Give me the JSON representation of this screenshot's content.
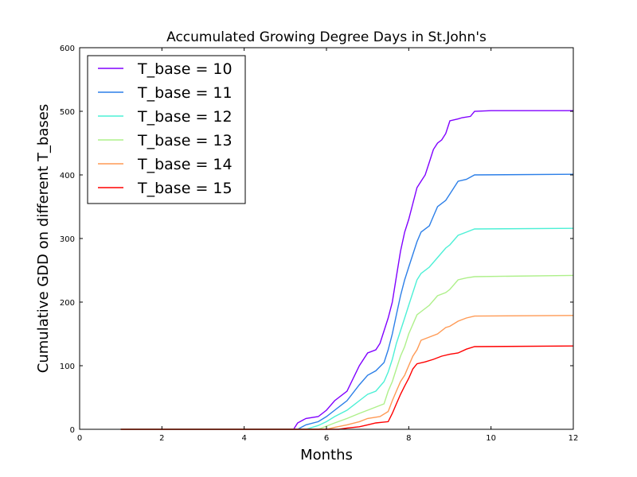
{
  "chart_data": {
    "type": "line",
    "title": "Accumulated Growing Degree Days in St.John's",
    "xlabel": "Months",
    "ylabel": "Cumulative GDD on different T_bases",
    "xlim": [
      0,
      12
    ],
    "ylim": [
      0,
      600
    ],
    "xticks": [
      "0",
      "2",
      "4",
      "6",
      "8",
      "10",
      "12"
    ],
    "yticks": [
      "0",
      "100",
      "200",
      "300",
      "400",
      "500",
      "600"
    ],
    "grid": false,
    "legend_position": "top-left",
    "series": [
      {
        "name": "T_base = 10",
        "color": "#8000ff",
        "x": [
          1.0,
          5.2,
          5.3,
          5.5,
          5.8,
          6.0,
          6.2,
          6.5,
          6.8,
          7.0,
          7.2,
          7.3,
          7.5,
          7.6,
          7.7,
          7.8,
          7.9,
          8.0,
          8.1,
          8.2,
          8.3,
          8.4,
          8.5,
          8.6,
          8.7,
          8.8,
          8.9,
          9.0,
          9.2,
          9.3,
          9.5,
          9.6,
          10.0,
          12.0
        ],
        "y": [
          0,
          0,
          10,
          17,
          20,
          30,
          45,
          60,
          100,
          120,
          125,
          135,
          175,
          200,
          240,
          280,
          310,
          330,
          355,
          380,
          390,
          400,
          420,
          440,
          450,
          455,
          465,
          485,
          488,
          490,
          492,
          500,
          501,
          501
        ]
      },
      {
        "name": "T_base = 11",
        "color": "#2c7fe8",
        "x": [
          1.0,
          5.3,
          5.5,
          5.8,
          6.0,
          6.2,
          6.5,
          6.8,
          7.0,
          7.2,
          7.4,
          7.5,
          7.6,
          7.7,
          7.8,
          7.9,
          8.0,
          8.1,
          8.2,
          8.3,
          8.5,
          8.6,
          8.7,
          8.9,
          9.0,
          9.2,
          9.4,
          9.6,
          12.0
        ],
        "y": [
          0,
          0,
          7,
          12,
          20,
          30,
          45,
          70,
          85,
          92,
          105,
          125,
          150,
          180,
          210,
          235,
          255,
          275,
          295,
          310,
          320,
          335,
          350,
          360,
          370,
          390,
          393,
          400,
          401
        ]
      },
      {
        "name": "T_base = 12",
        "color": "#4df0d6",
        "x": [
          1.0,
          5.5,
          5.8,
          6.0,
          6.2,
          6.5,
          6.8,
          7.0,
          7.2,
          7.4,
          7.5,
          7.6,
          7.7,
          7.8,
          7.9,
          8.0,
          8.1,
          8.2,
          8.3,
          8.5,
          8.7,
          8.9,
          9.0,
          9.2,
          9.4,
          9.6,
          12.0
        ],
        "y": [
          0,
          0,
          6,
          12,
          20,
          30,
          45,
          55,
          60,
          75,
          90,
          110,
          135,
          155,
          175,
          195,
          215,
          235,
          245,
          255,
          270,
          285,
          290,
          305,
          310,
          315,
          316
        ]
      },
      {
        "name": "T_base = 13",
        "color": "#aef08a",
        "x": [
          1.0,
          5.8,
          6.0,
          6.2,
          6.5,
          6.8,
          7.0,
          7.2,
          7.4,
          7.5,
          7.6,
          7.7,
          7.8,
          7.9,
          8.0,
          8.1,
          8.2,
          8.3,
          8.5,
          8.7,
          8.9,
          9.0,
          9.2,
          9.4,
          9.6,
          12.0
        ],
        "y": [
          0,
          0,
          5,
          10,
          17,
          25,
          30,
          35,
          40,
          60,
          75,
          95,
          115,
          130,
          150,
          165,
          180,
          185,
          195,
          210,
          215,
          220,
          235,
          238,
          240,
          242
        ]
      },
      {
        "name": "T_base = 14",
        "color": "#ff9a55",
        "x": [
          1.0,
          6.0,
          6.2,
          6.5,
          6.8,
          7.0,
          7.3,
          7.5,
          7.6,
          7.7,
          7.8,
          7.9,
          8.0,
          8.1,
          8.2,
          8.3,
          8.5,
          8.7,
          8.9,
          9.0,
          9.2,
          9.4,
          9.6,
          12.0
        ],
        "y": [
          0,
          0,
          3,
          7,
          12,
          17,
          20,
          28,
          45,
          60,
          75,
          85,
          100,
          115,
          125,
          140,
          145,
          150,
          160,
          162,
          170,
          175,
          178,
          179
        ]
      },
      {
        "name": "T_base = 15",
        "color": "#ff0000",
        "x": [
          1.0,
          6.3,
          6.5,
          6.8,
          7.0,
          7.2,
          7.5,
          7.6,
          7.7,
          7.8,
          7.9,
          8.0,
          8.1,
          8.2,
          8.4,
          8.6,
          8.8,
          9.0,
          9.2,
          9.4,
          9.6,
          12.0
        ],
        "y": [
          0,
          0,
          2,
          4,
          7,
          10,
          12,
          25,
          40,
          55,
          68,
          80,
          95,
          103,
          106,
          110,
          115,
          118,
          120,
          126,
          130,
          131
        ]
      }
    ]
  }
}
